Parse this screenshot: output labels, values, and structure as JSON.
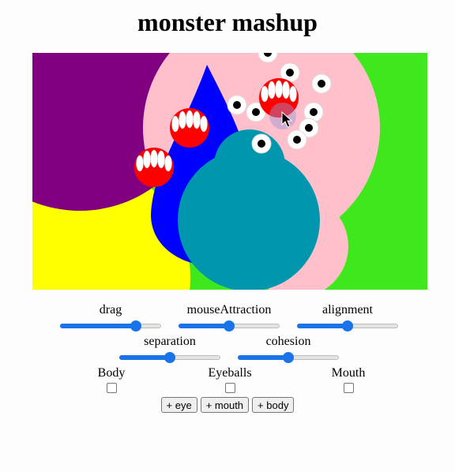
{
  "title": "monster mashup",
  "sliders": [
    {
      "label": "drag",
      "value": 0.78
    },
    {
      "label": "mouseAttraction",
      "value": 0.5
    },
    {
      "label": "alignment",
      "value": 0.5
    },
    {
      "label": "separation",
      "value": 0.5
    },
    {
      "label": "cohesion",
      "value": 0.5
    }
  ],
  "checkboxes": [
    {
      "label": "Body",
      "checked": false
    },
    {
      "label": "Eyeballs",
      "checked": false
    },
    {
      "label": "Mouth",
      "checked": false
    }
  ],
  "buttons": {
    "add_eye": "+ eye",
    "add_mouth": "+ mouth",
    "add_body": "+ body"
  },
  "colors": {
    "background": "#3fe81c",
    "purple": "#800080",
    "yellow": "#ffff00",
    "pink": "#ffc0cb",
    "blue": "#0000ff",
    "teal": "#0097ae",
    "mouth_red": "#ff0000",
    "accent": "#1a73e8"
  }
}
